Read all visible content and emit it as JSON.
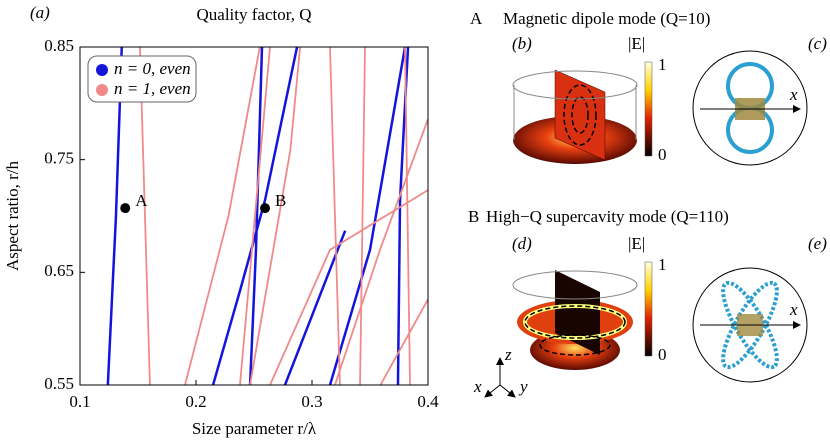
{
  "chart_data": {
    "type": "line",
    "panel_label": "(a)",
    "title": "Quality factor,  Q",
    "xlabel": "Size parameter r/λ",
    "ylabel": "Aspect ratio, r/h",
    "xlim": [
      0.1,
      0.4
    ],
    "ylim": [
      0.55,
      0.85
    ],
    "xticks": [
      0.1,
      0.2,
      0.3,
      0.4
    ],
    "yticks": [
      0.55,
      0.65,
      0.75,
      0.85
    ],
    "legend_position": "upper left",
    "series": [
      {
        "name": "n = 0, even",
        "color": "#1414dc",
        "x": [
          0.124,
          0.131,
          0.136,
          null,
          0.2147,
          0.238,
          0.2595,
          0.2871,
          null,
          0.2466,
          0.2517,
          0.2569,
          null,
          0.3155,
          0.35,
          0.3802,
          null,
          0.3741,
          0.3759,
          0.3828,
          null,
          0.2767,
          0.3286
        ],
        "values": [
          0.55,
          0.7,
          0.85,
          null,
          0.55,
          0.634,
          0.714,
          0.85,
          null,
          0.55,
          0.67,
          0.85,
          null,
          0.55,
          0.67,
          0.85,
          null,
          0.55,
          0.714,
          0.85,
          null,
          0.55,
          0.687
        ]
      },
      {
        "name": "n = 1, even",
        "color": "#f08a8a",
        "x": [
          0.1603,
          0.1517,
          null,
          0.1905,
          0.228,
          0.255,
          null,
          0.2379,
          0.2638,
          null,
          0.2466,
          0.2814,
          0.2897,
          null,
          0.3198,
          0.3586,
          0.4,
          null,
          0.2638,
          0.3155,
          0.4,
          null,
          0.3241,
          0.3155,
          null,
          0.3414,
          0.3457,
          null,
          0.359,
          0.4,
          null,
          0.3845,
          0.3802
        ],
        "values": [
          0.55,
          0.85,
          null,
          0.55,
          0.7,
          0.85,
          null,
          0.55,
          0.85,
          null,
          0.55,
          0.759,
          0.85,
          null,
          0.55,
          0.67,
          0.786,
          null,
          0.55,
          0.67,
          0.723,
          null,
          0.55,
          0.85,
          null,
          0.55,
          0.85,
          null,
          0.55,
          0.626,
          null,
          0.55,
          0.85
        ]
      }
    ],
    "annotations": [
      {
        "text": "A",
        "x": 0.139,
        "y": 0.707
      },
      {
        "text": "B",
        "x": 0.2595,
        "y": 0.707
      }
    ]
  },
  "panels": {
    "top": {
      "letter": "A",
      "title": "Magnetic dipole mode (Q=10)",
      "field_label": "(b)",
      "pattern_label": "(c)",
      "colorbar_title": "|E|",
      "colorbar_max": 1,
      "colorbar_min": 0,
      "axis": "x"
    },
    "bottom": {
      "letter": "B",
      "title": "High−Q supercavity mode (Q=110)",
      "field_label": "(d)",
      "pattern_label": "(e)",
      "colorbar_title": "|E|",
      "colorbar_max": 1,
      "colorbar_min": 0,
      "axis": "x"
    },
    "triad": {
      "z": "z",
      "x": "x",
      "y": "y"
    }
  }
}
